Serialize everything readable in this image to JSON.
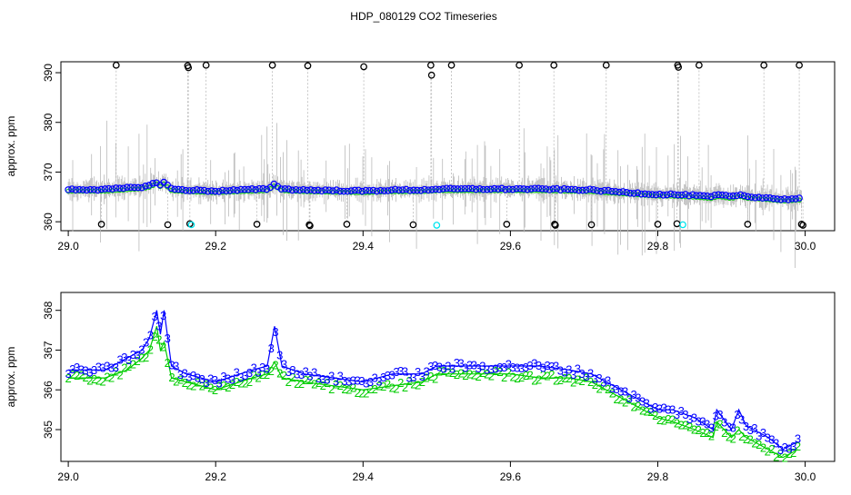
{
  "title": "HDP_080129  CO2 Timeseries",
  "colors": {
    "raw_trace": "#bbbbbb",
    "black_points": "#000000",
    "blue_points": "#0000ff",
    "green_points": "#00cc00",
    "cyan_points": "#00e5ee",
    "axis": "#000000"
  },
  "chart_data": [
    {
      "type": "scatter",
      "ylabel": "approx. ppm",
      "xlim": [
        28.99,
        30.04
      ],
      "ylim": [
        358.2,
        392.2
      ],
      "x_ticks": [
        "29.0",
        "29.2",
        "29.4",
        "29.6",
        "29.8",
        "30.0"
      ],
      "y_ticks": [
        "360",
        "370",
        "380",
        "390"
      ],
      "series": [
        {
          "marker": "open-circle",
          "color": "#000000",
          "note_points": "high and low outliers",
          "x": [
            29.065,
            29.162,
            29.163,
            29.187,
            29.277,
            29.325,
            29.401,
            29.492,
            29.493,
            29.52,
            29.612,
            29.659,
            29.73,
            29.827,
            29.828,
            29.856,
            29.944,
            29.992,
            29.045,
            29.135,
            29.165,
            29.256,
            29.327,
            29.328,
            29.378,
            29.468,
            29.595,
            29.66,
            29.661,
            29.71,
            29.8,
            29.826,
            29.922,
            29.995,
            29.997
          ],
          "y": [
            391.5,
            391.4,
            391.0,
            391.5,
            391.5,
            391.4,
            391.2,
            391.5,
            389.5,
            391.5,
            391.5,
            391.5,
            391.5,
            391.5,
            391.1,
            391.5,
            391.5,
            391.5,
            359.5,
            359.4,
            359.6,
            359.5,
            359.4,
            359.2,
            359.5,
            359.4,
            359.5,
            359.5,
            359.3,
            359.4,
            359.5,
            359.6,
            359.5,
            359.5,
            359.3
          ]
        },
        {
          "marker": "open-circle",
          "color": "#00e5ee",
          "x": [
            29.167,
            29.5,
            29.834
          ],
          "y": [
            359.4,
            359.3,
            359.4
          ]
        }
      ]
    },
    {
      "type": "line",
      "ylabel": "approx. ppm",
      "xlim": [
        28.99,
        30.04
      ],
      "ylim": [
        364.2,
        368.45
      ],
      "x_ticks": [
        "29.0",
        "29.2",
        "29.4",
        "29.6",
        "29.8",
        "30.0"
      ],
      "y_ticks": [
        "365",
        "366",
        "367",
        "368"
      ],
      "series": [
        {
          "marker": "3",
          "color": "#0000ff",
          "x": [
            29.0,
            29.05,
            29.08,
            29.1,
            29.11,
            29.12,
            29.125,
            29.13,
            29.14,
            29.16,
            29.2,
            29.25,
            29.27,
            29.28,
            29.29,
            29.32,
            29.36,
            29.4,
            29.44,
            29.48,
            29.5,
            29.55,
            29.6,
            29.64,
            29.68,
            29.71,
            29.74,
            29.77,
            29.8,
            29.82,
            29.85,
            29.875,
            29.88,
            29.9,
            29.91,
            29.92,
            29.95,
            29.97,
            29.99
          ],
          "y": [
            366.5,
            366.5,
            366.8,
            367.0,
            367.3,
            368.0,
            367.4,
            368.0,
            366.6,
            366.4,
            366.2,
            366.5,
            366.6,
            367.6,
            366.6,
            366.4,
            366.3,
            366.2,
            366.4,
            366.4,
            366.6,
            366.6,
            366.6,
            366.6,
            366.5,
            366.4,
            366.1,
            365.8,
            365.5,
            365.5,
            365.3,
            365.0,
            365.5,
            365.0,
            365.5,
            365.1,
            364.8,
            364.5,
            364.7
          ]
        },
        {
          "marker": "2",
          "color": "#00cc00",
          "x": [
            29.0,
            29.05,
            29.08,
            29.1,
            29.11,
            29.12,
            29.125,
            29.13,
            29.14,
            29.16,
            29.2,
            29.25,
            29.27,
            29.28,
            29.29,
            29.32,
            29.36,
            29.4,
            29.44,
            29.48,
            29.5,
            29.55,
            29.6,
            29.64,
            29.68,
            29.71,
            29.74,
            29.77,
            29.8,
            29.82,
            29.85,
            29.875,
            29.88,
            29.9,
            29.91,
            29.92,
            29.95,
            29.97,
            29.99
          ],
          "y": [
            366.3,
            366.3,
            366.5,
            366.8,
            367.0,
            367.6,
            367.0,
            367.2,
            366.3,
            366.2,
            366.0,
            366.3,
            366.4,
            366.7,
            366.3,
            366.2,
            366.1,
            366.0,
            366.1,
            366.2,
            366.4,
            366.4,
            366.4,
            366.3,
            366.3,
            366.2,
            365.9,
            365.6,
            365.3,
            365.2,
            365.0,
            364.8,
            365.2,
            364.8,
            365.0,
            364.8,
            364.5,
            364.3,
            364.5
          ]
        }
      ]
    }
  ]
}
